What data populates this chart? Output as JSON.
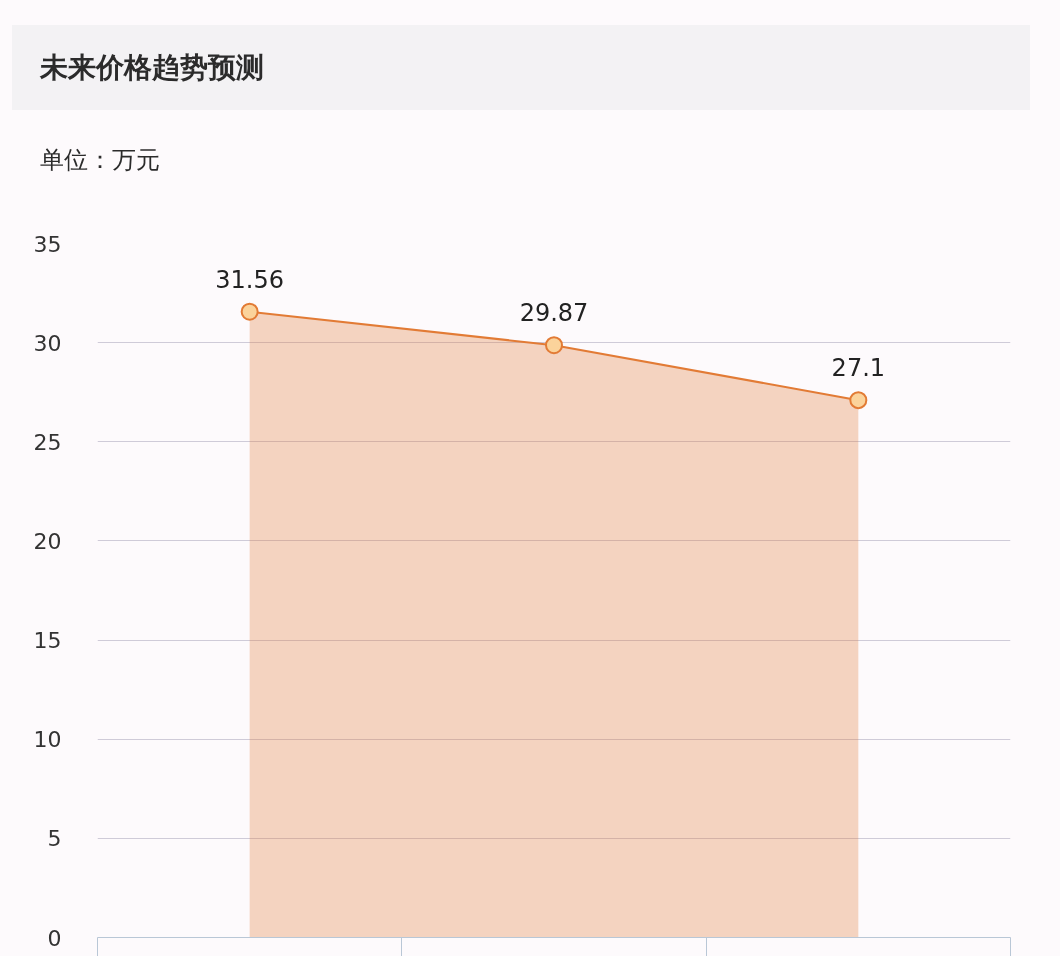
{
  "chart_data": {
    "type": "area",
    "title": "未来价格趋势预测",
    "ylabel": "单位：万元",
    "categories": [
      null,
      null,
      null
    ],
    "series": [
      {
        "color": "#e27b35",
        "values": [
          31.56,
          29.87,
          27.1
        ]
      }
    ],
    "ylim": [
      0,
      35
    ],
    "yticks": [
      0,
      5,
      10,
      15,
      20,
      25,
      30,
      35
    ],
    "grid": "y",
    "marker": "circle",
    "data_labels": true,
    "tick_labels": "y"
  }
}
